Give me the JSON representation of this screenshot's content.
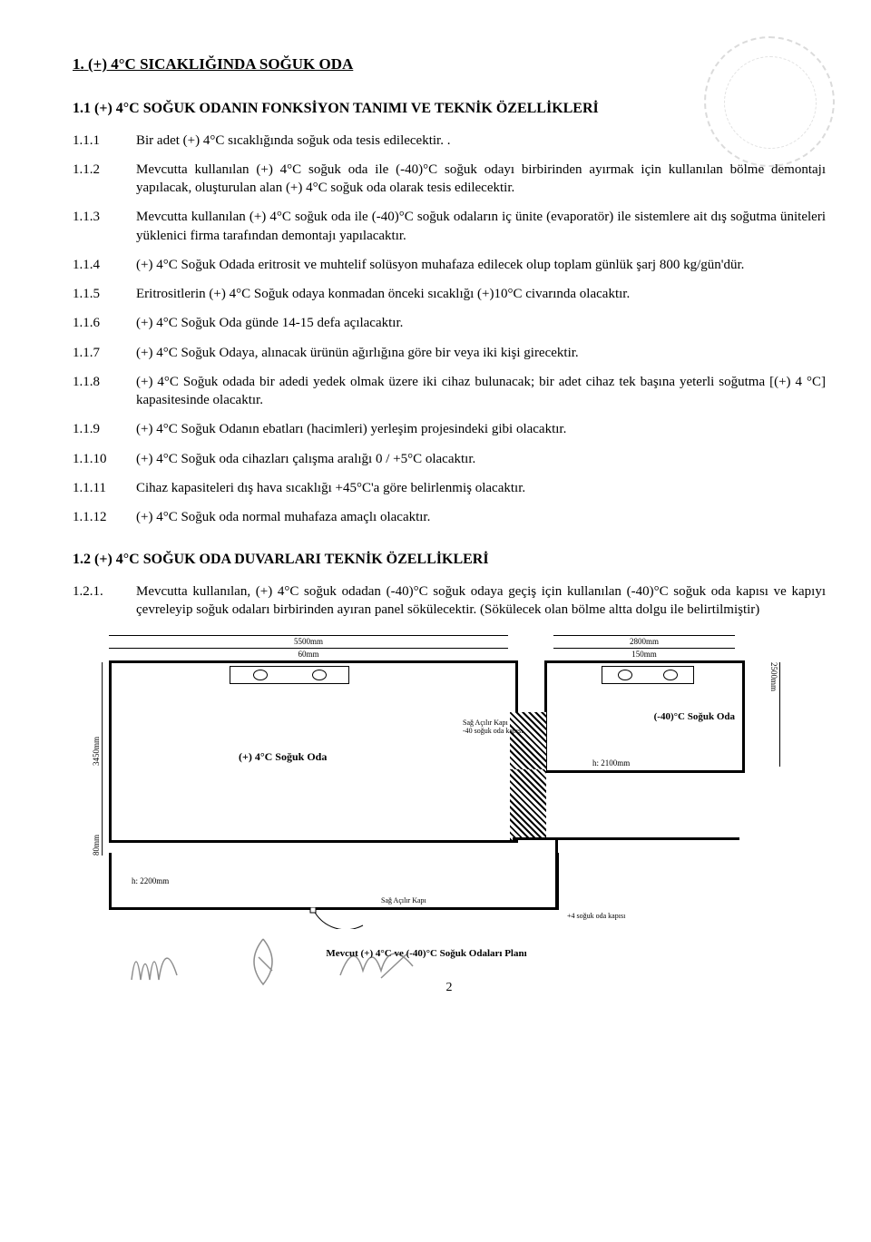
{
  "page": {
    "number": "2"
  },
  "headings": {
    "h1_num": "1.",
    "h1_text": "(+) 4°C SICAKLIĞINDA SOĞUK ODA",
    "h1_1": "1.1 (+) 4°C SOĞUK ODANIN FONKSİYON TANIMI VE TEKNİK ÖZELLİKLERİ",
    "h1_2": "1.2 (+) 4°C SOĞUK ODA DUVARLARI TEKNİK ÖZELLİKLERİ"
  },
  "items_1_1": [
    {
      "num": "1.1.1",
      "text": "Bir adet (+) 4°C sıcaklığında soğuk oda tesis edilecektir. ."
    },
    {
      "num": "1.1.2",
      "text": "Mevcutta kullanılan (+) 4°C soğuk oda ile (-40)°C soğuk odayı birbirinden ayırmak için kullanılan bölme demontajı yapılacak, oluşturulan alan (+) 4°C soğuk oda olarak tesis edilecektir."
    },
    {
      "num": "1.1.3",
      "text": "Mevcutta kullanılan (+) 4°C soğuk oda ile (-40)°C soğuk odaların iç ünite (evaporatör) ile sistemlere ait dış soğutma üniteleri yüklenici firma tarafından demontajı yapılacaktır."
    },
    {
      "num": "1.1.4",
      "text": "(+) 4°C Soğuk Odada eritrosit ve muhtelif solüsyon muhafaza edilecek olup toplam günlük şarj 800 kg/gün'dür."
    },
    {
      "num": "1.1.5",
      "text": "Eritrositlerin (+) 4°C Soğuk odaya konmadan önceki sıcaklığı (+)10°C civarında olacaktır."
    },
    {
      "num": "1.1.6",
      "text": "(+) 4°C Soğuk Oda günde 14-15 defa açılacaktır."
    },
    {
      "num": "1.1.7",
      "text": "(+) 4°C Soğuk Odaya, alınacak ürünün ağırlığına göre bir veya iki kişi girecektir."
    },
    {
      "num": "1.1.8",
      "text": "(+) 4°C Soğuk odada bir adedi yedek olmak üzere iki cihaz bulunacak; bir adet cihaz tek başına yeterli soğutma [(+) 4 °C] kapasitesinde olacaktır."
    },
    {
      "num": "1.1.9",
      "text": "(+) 4°C Soğuk Odanın ebatları (hacimleri) yerleşim projesindeki gibi olacaktır."
    },
    {
      "num": "1.1.10",
      "text": "(+) 4°C Soğuk oda cihazları çalışma aralığı 0 / +5°C olacaktır."
    },
    {
      "num": "1.1.11",
      "text": "Cihaz kapasiteleri dış hava sıcaklığı +45°C'a göre belirlenmiş olacaktır."
    },
    {
      "num": "1.1.12",
      "text": "(+) 4°C Soğuk oda normal muhafaza amaçlı olacaktır."
    }
  ],
  "items_1_2": [
    {
      "num": "1.2.1.",
      "text": "Mevcutta kullanılan, (+) 4°C soğuk odadan (-40)°C soğuk odaya geçiş için kullanılan (-40)°C soğuk oda kapısı ve kapıyı çevreleyip soğuk odaları birbirinden ayıran panel sökülecektir. (Sökülecek olan bölme altta dolgu ile belirtilmiştir)"
    }
  ],
  "plan": {
    "dim_5500": "5500mm",
    "dim_60": "60mm",
    "dim_2800": "2800mm",
    "dim_150": "150mm",
    "dim_3450_v": "3450mm",
    "dim_2500_v": "2500mm",
    "dim_80_v": "80mm",
    "room_left": "(+) 4°C Soğuk Oda",
    "room_right": "(-40)°C Soğuk Oda",
    "h_2100": "h: 2100mm",
    "h_2200": "h: 2200mm",
    "door1": "Sağ Açılır Kapı\n-40 soğuk oda kapısı",
    "door2": "Sağ Açılır Kapı",
    "door3": "+4 soğuk oda kapısı",
    "caption": "Mevcut (+) 4°C ve (-40)°C Soğuk Odaları Planı"
  }
}
